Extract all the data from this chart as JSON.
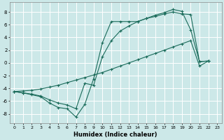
{
  "xlabel": "Humidex (Indice chaleur)",
  "background_color": "#cce8e8",
  "grid_color": "#ffffff",
  "line_color": "#1a6b5a",
  "xlim": [
    -0.5,
    23.5
  ],
  "ylim": [
    -9.5,
    9.5
  ],
  "xticks": [
    0,
    1,
    2,
    3,
    4,
    5,
    6,
    7,
    8,
    9,
    10,
    11,
    12,
    13,
    14,
    15,
    16,
    17,
    18,
    19,
    20,
    21,
    22,
    23
  ],
  "yticks": [
    -8,
    -6,
    -4,
    -2,
    0,
    2,
    4,
    6,
    8
  ],
  "series1_x": [
    0,
    1,
    2,
    3,
    4,
    5,
    6,
    7,
    8,
    9,
    10,
    11,
    12,
    13,
    14,
    15,
    16,
    17,
    18,
    19,
    20,
    21,
    22
  ],
  "series1_y": [
    -4.5,
    -4.7,
    -5.0,
    -5.3,
    -6.3,
    -7.0,
    -7.2,
    -8.5,
    -6.5,
    -2.5,
    3.2,
    6.5,
    6.5,
    6.5,
    6.5,
    7.0,
    7.5,
    7.9,
    8.4,
    8.1,
    5.2,
    0.2,
    0.3
  ],
  "series2_x": [
    0,
    1,
    2,
    3,
    4,
    5,
    6,
    7,
    8,
    9,
    10,
    11,
    12,
    13,
    14,
    15,
    16,
    17,
    18,
    19,
    20,
    21,
    22
  ],
  "series2_y": [
    -4.5,
    -4.7,
    -4.9,
    -5.2,
    -5.8,
    -6.3,
    -6.6,
    -7.2,
    -3.2,
    -3.5,
    1.0,
    3.5,
    5.0,
    5.8,
    6.5,
    7.0,
    7.3,
    7.7,
    8.0,
    7.7,
    7.6,
    0.2,
    0.3
  ],
  "series3_x": [
    0,
    1,
    2,
    3,
    4,
    5,
    6,
    7,
    8,
    9,
    10,
    11,
    12,
    13,
    14,
    15,
    16,
    17,
    18,
    19,
    20,
    21,
    22
  ],
  "series3_y": [
    -4.5,
    -4.4,
    -4.3,
    -4.1,
    -3.8,
    -3.5,
    -3.1,
    -2.7,
    -2.3,
    -1.9,
    -1.5,
    -1.0,
    -0.5,
    0.0,
    0.5,
    1.0,
    1.5,
    2.0,
    2.5,
    3.0,
    3.5,
    -0.5,
    0.3
  ]
}
